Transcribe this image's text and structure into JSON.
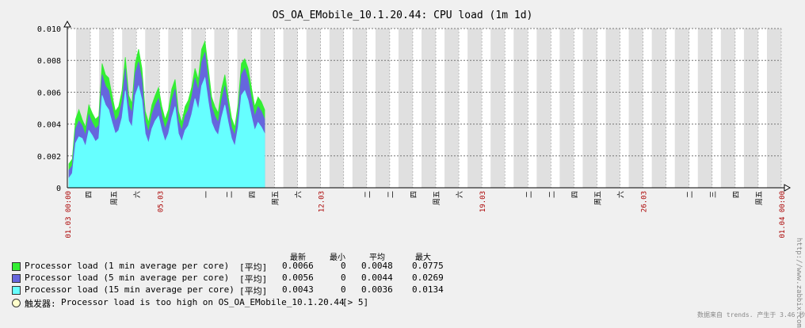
{
  "chart_data": {
    "type": "area",
    "title": "OS_OA_EMobile_10.1.20.44: CPU load (1m 1d)",
    "ylim": [
      0,
      0.01
    ],
    "y_ticks": [
      "0.010",
      "0.008",
      "0.006",
      "0.004",
      "0.002",
      "0"
    ],
    "x_labels": [
      {
        "text": "01.03 00:00",
        "day": 0,
        "color": "#aa0000"
      },
      {
        "text": "四",
        "day": 0.9
      },
      {
        "text": "周五",
        "day": 2.0
      },
      {
        "text": "六",
        "day": 3.0
      },
      {
        "text": "05.03",
        "day": 4.0,
        "color": "#aa0000"
      },
      {
        "text": "一",
        "day": 6.0
      },
      {
        "text": "二",
        "day": 7.0
      },
      {
        "text": "四",
        "day": 8.0
      },
      {
        "text": "周五",
        "day": 9.0
      },
      {
        "text": "六",
        "day": 10.0
      },
      {
        "text": "12.03",
        "day": 11.0,
        "color": "#aa0000"
      },
      {
        "text": "二",
        "day": 13.0
      },
      {
        "text": "二",
        "day": 14.0
      },
      {
        "text": "四",
        "day": 15.0
      },
      {
        "text": "周五",
        "day": 16.0
      },
      {
        "text": "六",
        "day": 17.0
      },
      {
        "text": "19.03",
        "day": 18.0,
        "color": "#aa0000"
      },
      {
        "text": "二",
        "day": 20.0
      },
      {
        "text": "二",
        "day": 21.0
      },
      {
        "text": "四",
        "day": 22.0
      },
      {
        "text": "周五",
        "day": 23.0
      },
      {
        "text": "六",
        "day": 24.0
      },
      {
        "text": "26.03",
        "day": 25.0,
        "color": "#aa0000"
      },
      {
        "text": "二",
        "day": 27.0
      },
      {
        "text": "三",
        "day": 28.0
      },
      {
        "text": "四",
        "day": 29.0
      },
      {
        "text": "周五",
        "day": 30.0
      },
      {
        "text": "01.04 00:00",
        "day": 31.0,
        "color": "#aa0000"
      }
    ],
    "series": [
      {
        "name": "Processor load (1 min average per core)",
        "color": "#33ee33",
        "values": [
          0.0015,
          0.0018,
          0.0043,
          0.0049,
          0.0043,
          0.0038,
          0.0052,
          0.0047,
          0.0043,
          0.0045,
          0.0078,
          0.0071,
          0.0069,
          0.0058,
          0.0048,
          0.0051,
          0.0061,
          0.0082,
          0.0058,
          0.0053,
          0.0078,
          0.0087,
          0.0075,
          0.0048,
          0.0041,
          0.0052,
          0.0058,
          0.0063,
          0.0051,
          0.0043,
          0.0049,
          0.0062,
          0.0068,
          0.0048,
          0.0041,
          0.0051,
          0.0055,
          0.0063,
          0.0075,
          0.0068,
          0.0087,
          0.0092,
          0.0075,
          0.0057,
          0.0051,
          0.0047,
          0.0062,
          0.0071,
          0.0057,
          0.0044,
          0.0038,
          0.0053,
          0.0078,
          0.0081,
          0.0075,
          0.0063,
          0.0051,
          0.0057,
          0.0054,
          0.0049
        ]
      },
      {
        "name": "Processor load (5 min average per core)",
        "color": "#6666dd",
        "values": [
          0.0011,
          0.0014,
          0.0037,
          0.0042,
          0.0039,
          0.0033,
          0.0046,
          0.0041,
          0.0037,
          0.0039,
          0.0071,
          0.0064,
          0.0061,
          0.0051,
          0.0042,
          0.0045,
          0.0054,
          0.0075,
          0.0052,
          0.0047,
          0.0072,
          0.0079,
          0.0068,
          0.0042,
          0.0035,
          0.0046,
          0.0052,
          0.0056,
          0.0045,
          0.0037,
          0.0043,
          0.0055,
          0.0062,
          0.0042,
          0.0036,
          0.0045,
          0.0049,
          0.0057,
          0.0069,
          0.0061,
          0.0079,
          0.0085,
          0.0067,
          0.0051,
          0.0045,
          0.0041,
          0.0055,
          0.0064,
          0.0051,
          0.0038,
          0.0033,
          0.0047,
          0.0071,
          0.0075,
          0.0068,
          0.0056,
          0.0045,
          0.0051,
          0.0048,
          0.0043
        ]
      },
      {
        "name": "Processor load (15 min average per core)",
        "color": "#66ffff",
        "values": [
          0.0006,
          0.0009,
          0.0028,
          0.0032,
          0.0031,
          0.0026,
          0.0036,
          0.0033,
          0.0029,
          0.0031,
          0.0058,
          0.0052,
          0.0049,
          0.0041,
          0.0034,
          0.0036,
          0.0044,
          0.0061,
          0.0042,
          0.0038,
          0.0058,
          0.0064,
          0.0055,
          0.0034,
          0.0028,
          0.0037,
          0.0042,
          0.0045,
          0.0036,
          0.0029,
          0.0034,
          0.0044,
          0.0051,
          0.0034,
          0.0029,
          0.0036,
          0.0039,
          0.0046,
          0.0056,
          0.0049,
          0.0064,
          0.0069,
          0.0054,
          0.0041,
          0.0036,
          0.0033,
          0.0044,
          0.0052,
          0.0041,
          0.0031,
          0.0026,
          0.0038,
          0.0058,
          0.0061,
          0.0055,
          0.0045,
          0.0036,
          0.0041,
          0.0038,
          0.0034
        ]
      }
    ],
    "legend_headers": {
      "last": "最新",
      "min": "最小",
      "avg": "平均",
      "max": "最大"
    },
    "legend_rows": [
      {
        "label": "Processor load (1 min average per core)",
        "func": "[平均]",
        "last": "0.0066",
        "min": "0",
        "avg": "0.0048",
        "max": "0.0775"
      },
      {
        "label": "Processor load (5 min average per core)",
        "func": "[平均]",
        "last": "0.0056",
        "min": "0",
        "avg": "0.0044",
        "max": "0.0269"
      },
      {
        "label": "Processor load (15 min average per core)",
        "func": "[平均]",
        "last": "0.0043",
        "min": "0",
        "avg": "0.0036",
        "max": "0.0134"
      }
    ],
    "trigger": {
      "prefix": "触发器:",
      "text": "Processor load is too high on OS_OA_EMobile_10.1.20.44",
      "threshold": "[> 5]"
    },
    "watermark": "http://www.zabbix.com",
    "footer": "数据来自 trends. 产生于 3.46 秒"
  }
}
